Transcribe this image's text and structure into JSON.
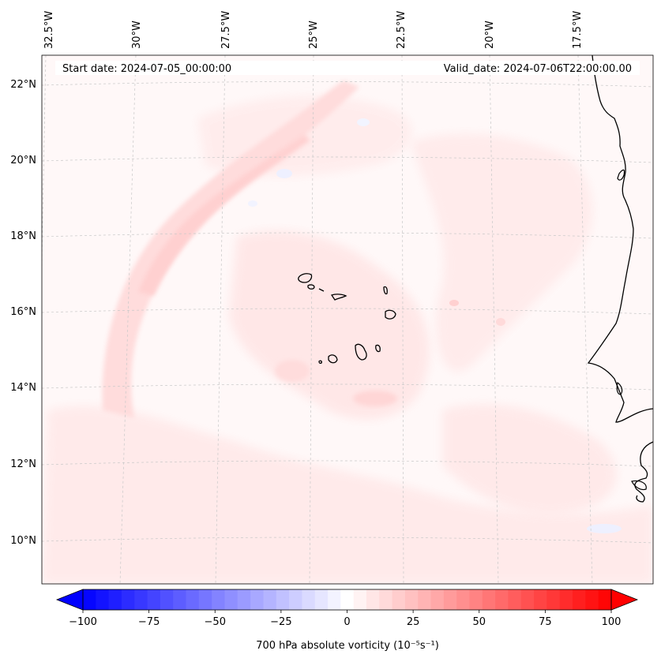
{
  "header": {
    "start_date": "Start date: 2024-07-05_00:00:00",
    "valid_date": "Valid_date: 2024-07-06T22:00:00.00"
  },
  "map": {
    "longitude_labels": [
      "32.5°W",
      "30°W",
      "27.5°W",
      "25°W",
      "22.5°W",
      "20°W",
      "17.5°W"
    ],
    "latitude_labels": [
      "22°N",
      "20°N",
      "18°N",
      "16°N",
      "14°N",
      "12°N",
      "10°N"
    ],
    "field_name": "700 hPa absolute vorticity",
    "features": [
      "coastline-west-africa",
      "cape-verde-islands",
      "vorticity-band"
    ]
  },
  "colorbar": {
    "tick_labels": [
      "−100",
      "−75",
      "−50",
      "−25",
      "0",
      "25",
      "50",
      "75",
      "100"
    ],
    "tick_values": [
      -100,
      -75,
      -50,
      -25,
      0,
      25,
      50,
      75,
      100
    ],
    "label": "700 hPa absolute vorticity (10⁻⁵s⁻¹)",
    "min": -100,
    "max": 100,
    "levels": 41,
    "color_low": "#0000ff",
    "color_mid": "#ffffff",
    "color_high": "#ff0000"
  }
}
